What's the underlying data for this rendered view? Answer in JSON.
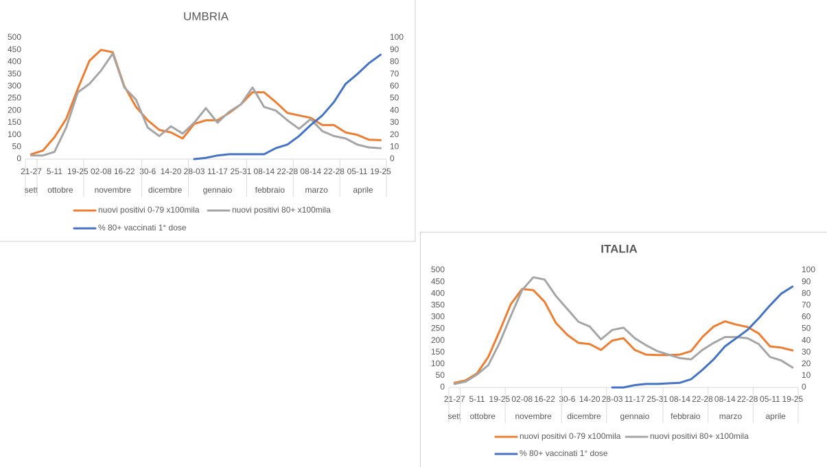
{
  "chart_data": [
    {
      "type": "line",
      "title": "UMBRIA",
      "categories": [
        "21-27",
        null,
        "5-11",
        null,
        "19-25",
        null,
        "02-08",
        null,
        "16-22",
        null,
        "30-6",
        null,
        "14-20",
        null,
        "28-03",
        null,
        "11-17",
        null,
        "25-31",
        null,
        "08-14",
        null,
        "22-28",
        null,
        "08-14",
        null,
        "22-28",
        null,
        "05-11",
        null,
        "19-25"
      ],
      "months": [
        "sett",
        "ottobre",
        "ottobre",
        "ottobre",
        "ottobre",
        "novembre",
        "novembre",
        "novembre",
        "novembre",
        "novembre",
        "dicembre",
        "dicembre",
        "dicembre",
        "dicembre",
        "gennaio",
        "gennaio",
        "gennaio",
        "gennaio",
        "gennaio",
        "febbraio",
        "febbraio",
        "febbraio",
        "febbraio",
        "marzo",
        "marzo",
        "marzo",
        "marzo",
        "aprile",
        "aprile",
        "aprile",
        "aprile"
      ],
      "series": [
        {
          "name": "nuovi positivi 0-79 x100mila",
          "color": "#ed7d31",
          "values": [
            20,
            35,
            90,
            165,
            290,
            405,
            450,
            440,
            300,
            215,
            160,
            120,
            110,
            85,
            145,
            160,
            160,
            190,
            225,
            275,
            275,
            235,
            190,
            180,
            170,
            140,
            140,
            110,
            100,
            80,
            78
          ]
        },
        {
          "name": "nuovi positivi 80+ x100mila",
          "color": "#a5a5a5",
          "values": [
            15,
            15,
            30,
            130,
            275,
            310,
            365,
            435,
            295,
            245,
            130,
            95,
            135,
            105,
            150,
            210,
            150,
            195,
            225,
            295,
            215,
            200,
            160,
            125,
            165,
            115,
            95,
            85,
            60,
            48,
            45
          ]
        },
        {
          "name": "% 80+ vaccinati 1° dose",
          "color": "#4472c4",
          "axis": "y2",
          "values": [
            null,
            null,
            null,
            null,
            null,
            null,
            null,
            null,
            null,
            null,
            null,
            null,
            null,
            null,
            0,
            1,
            3,
            4,
            4,
            4,
            4,
            9,
            12,
            19,
            28,
            36,
            47,
            62,
            70,
            79,
            86
          ]
        }
      ],
      "ylim": [
        0,
        500
      ],
      "yticks": [
        0,
        50,
        100,
        150,
        200,
        250,
        300,
        350,
        400,
        450,
        500
      ],
      "y2lim": [
        0,
        100
      ],
      "y2ticks": [
        0,
        10,
        20,
        30,
        40,
        50,
        60,
        70,
        80,
        90,
        100
      ],
      "grid": false
    },
    {
      "type": "line",
      "title": "ITALIA",
      "categories": [
        "21-27",
        null,
        "5-11",
        null,
        "19-25",
        null,
        "02-08",
        null,
        "16-22",
        null,
        "30-6",
        null,
        "14-20",
        null,
        "28-03",
        null,
        "11-17",
        null,
        "25-31",
        null,
        "08-14",
        null,
        "22-28",
        null,
        "08-14",
        null,
        "22-28",
        null,
        "05-11",
        null,
        "19-25"
      ],
      "months": [
        "sett",
        "ottobre",
        "ottobre",
        "ottobre",
        "ottobre",
        "novembre",
        "novembre",
        "novembre",
        "novembre",
        "novembre",
        "dicembre",
        "dicembre",
        "dicembre",
        "dicembre",
        "gennaio",
        "gennaio",
        "gennaio",
        "gennaio",
        "gennaio",
        "febbraio",
        "febbraio",
        "febbraio",
        "febbraio",
        "marzo",
        "marzo",
        "marzo",
        "marzo",
        "aprile",
        "aprile",
        "aprile",
        "aprile"
      ],
      "series": [
        {
          "name": "nuovi positivi 0-79 x100mila",
          "color": "#ed7d31",
          "values": [
            20,
            30,
            60,
            130,
            240,
            355,
            420,
            415,
            365,
            275,
            225,
            190,
            185,
            160,
            200,
            210,
            160,
            140,
            138,
            138,
            140,
            155,
            215,
            260,
            282,
            268,
            258,
            230,
            175,
            170,
            158
          ]
        },
        {
          "name": "nuovi positivi 80+ x100mila",
          "color": "#a5a5a5",
          "values": [
            15,
            25,
            55,
            95,
            190,
            305,
            415,
            470,
            460,
            390,
            335,
            280,
            260,
            205,
            245,
            255,
            210,
            180,
            155,
            140,
            125,
            120,
            160,
            190,
            215,
            215,
            210,
            185,
            130,
            115,
            85
          ]
        },
        {
          "name": "% 80+ vaccinati 1° dose",
          "color": "#4472c4",
          "axis": "y2",
          "values": [
            null,
            null,
            null,
            null,
            null,
            null,
            null,
            null,
            null,
            null,
            null,
            null,
            null,
            null,
            0,
            0,
            2,
            3,
            3,
            3.5,
            4,
            7,
            15,
            24,
            35,
            42,
            49,
            59,
            70,
            80,
            86
          ]
        }
      ],
      "ylim": [
        0,
        500
      ],
      "yticks": [
        0,
        50,
        100,
        150,
        200,
        250,
        300,
        350,
        400,
        450,
        500
      ],
      "y2lim": [
        0,
        100
      ],
      "y2ticks": [
        0,
        10,
        20,
        30,
        40,
        50,
        60,
        70,
        80,
        90,
        100
      ],
      "grid": false
    }
  ]
}
